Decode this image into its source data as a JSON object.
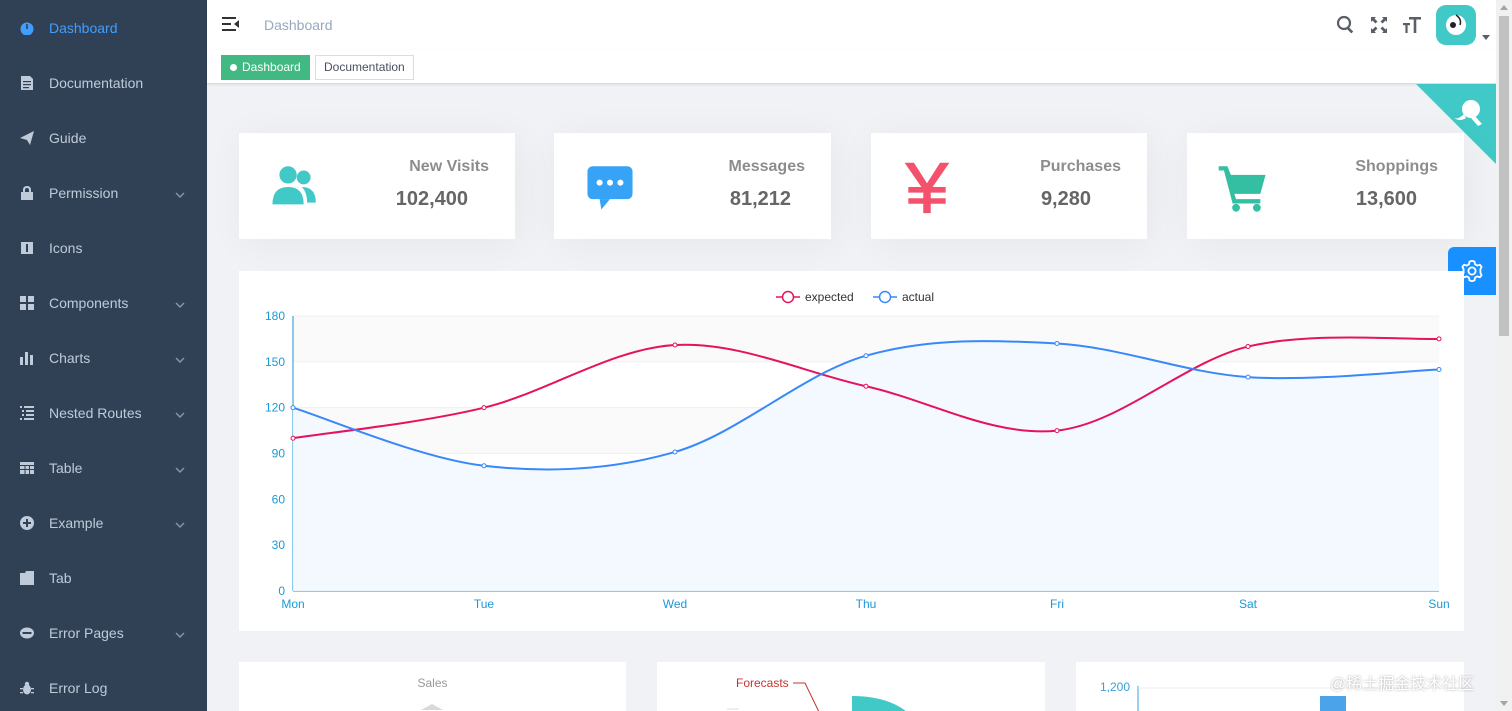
{
  "sidebar": {
    "items": [
      {
        "label": "Dashboard",
        "icon": "dashboard-icon",
        "active": true,
        "submenu": false
      },
      {
        "label": "Documentation",
        "icon": "documentation-icon",
        "active": false,
        "submenu": false
      },
      {
        "label": "Guide",
        "icon": "guide-icon",
        "active": false,
        "submenu": false
      },
      {
        "label": "Permission",
        "icon": "lock-icon",
        "active": false,
        "submenu": true
      },
      {
        "label": "Icons",
        "icon": "icons-icon",
        "active": false,
        "submenu": false
      },
      {
        "label": "Components",
        "icon": "components-icon",
        "active": false,
        "submenu": true
      },
      {
        "label": "Charts",
        "icon": "chart-icon",
        "active": false,
        "submenu": true
      },
      {
        "label": "Nested Routes",
        "icon": "nested-icon",
        "active": false,
        "submenu": true
      },
      {
        "label": "Table",
        "icon": "table-icon",
        "active": false,
        "submenu": true
      },
      {
        "label": "Example",
        "icon": "example-icon",
        "active": false,
        "submenu": true
      },
      {
        "label": "Tab",
        "icon": "tab-icon",
        "active": false,
        "submenu": false
      },
      {
        "label": "Error Pages",
        "icon": "404-icon",
        "active": false,
        "submenu": true
      },
      {
        "label": "Error Log",
        "icon": "bug-icon",
        "active": false,
        "submenu": false
      }
    ]
  },
  "navbar": {
    "breadcrumb": "Dashboard"
  },
  "tags": [
    {
      "label": "Dashboard",
      "active": true
    },
    {
      "label": "Documentation",
      "active": false
    }
  ],
  "cards": [
    {
      "title": "New Visits",
      "value": "102,400",
      "icon": "people-icon",
      "color": "#40c9c6"
    },
    {
      "title": "Messages",
      "value": "81,212",
      "icon": "message-icon",
      "color": "#36a3f7"
    },
    {
      "title": "Purchases",
      "value": "9,280",
      "icon": "money-icon",
      "color": "#f4516c"
    },
    {
      "title": "Shoppings",
      "value": "13,600",
      "icon": "shopping-icon",
      "color": "#34bfa3"
    }
  ],
  "chart_data": {
    "type": "line",
    "categories": [
      "Mon",
      "Tue",
      "Wed",
      "Thu",
      "Fri",
      "Sat",
      "Sun"
    ],
    "series": [
      {
        "name": "expected",
        "values": [
          100,
          120,
          161,
          134,
          105,
          160,
          165
        ],
        "color": "#e5135b"
      },
      {
        "name": "actual",
        "values": [
          120,
          82,
          91,
          154,
          162,
          140,
          145
        ],
        "color": "#3888fa"
      }
    ],
    "yticks": [
      "0",
      "30",
      "60",
      "90",
      "120",
      "150",
      "180"
    ],
    "ylim": [
      0,
      180
    ],
    "legend": "top-center"
  },
  "bottom": {
    "sales_title": "Sales",
    "forecasts_label": "Forecasts",
    "bar_tick": "1,200"
  },
  "watermark": "@稀土掘金技术社区",
  "colors": {
    "sidebar_bg": "#304156",
    "active": "#409eff",
    "tag_active": "#42b983"
  }
}
